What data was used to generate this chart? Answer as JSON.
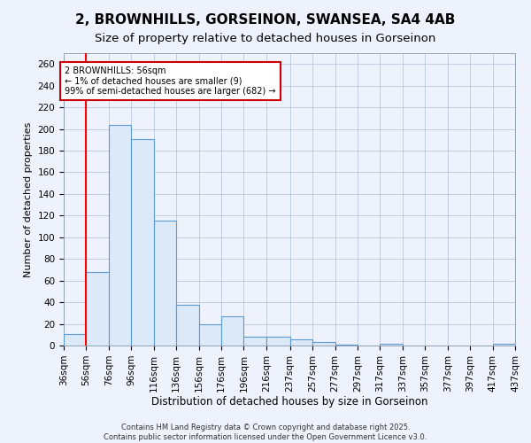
{
  "title": "2, BROWNHILLS, GORSEINON, SWANSEA, SA4 4AB",
  "subtitle": "Size of property relative to detached houses in Gorseinon",
  "xlabel": "Distribution of detached houses by size in Gorseinon",
  "ylabel": "Number of detached properties",
  "bar_color": "#dce9f8",
  "bar_edge_color": "#5b9bd5",
  "red_line_x": 56,
  "annotation_text": "2 BROWNHILLS: 56sqm\n← 1% of detached houses are smaller (9)\n99% of semi-detached houses are larger (682) →",
  "annotation_box_color": "#ffffff",
  "annotation_box_edge_color": "#cc0000",
  "footnote1": "Contains HM Land Registry data © Crown copyright and database right 2025.",
  "footnote2": "Contains public sector information licensed under the Open Government Licence v3.0.",
  "bins": [
    36,
    56,
    76,
    96,
    116,
    136,
    156,
    176,
    196,
    216,
    237,
    257,
    277,
    297,
    317,
    337,
    357,
    377,
    397,
    417,
    437
  ],
  "counts": [
    11,
    68,
    204,
    191,
    115,
    38,
    20,
    27,
    8,
    8,
    6,
    3,
    1,
    0,
    2,
    0,
    0,
    0,
    0,
    2
  ],
  "ylim": [
    0,
    270
  ],
  "yticks": [
    0,
    20,
    40,
    60,
    80,
    100,
    120,
    140,
    160,
    180,
    200,
    220,
    240,
    260
  ],
  "background_color": "#eef2fc",
  "grid_color": "#b8c8e0",
  "title_fontsize": 11,
  "subtitle_fontsize": 9.5,
  "xlabel_fontsize": 8.5,
  "ylabel_fontsize": 8,
  "tick_fontsize": 7.5,
  "annot_fontsize": 7,
  "footnote_fontsize": 6
}
